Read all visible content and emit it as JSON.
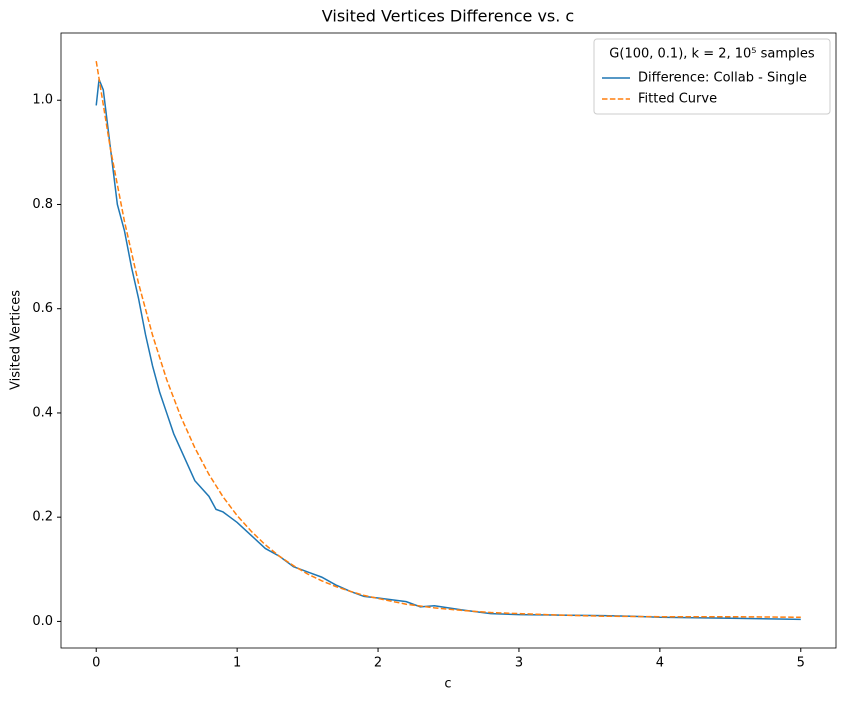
{
  "chart_data": {
    "type": "line",
    "title": "Visited Vertices Difference vs. c",
    "x_label": "c",
    "y_label": "Visited Vertices",
    "legend_title": "G(100, 0.1), k = 2, 10⁵ samples",
    "legend_position": "upper right",
    "xlim": [
      -0.25,
      5.25
    ],
    "ylim": [
      -0.051,
      1.129
    ],
    "xticks": [
      0,
      1,
      2,
      3,
      4,
      5
    ],
    "yticks": [
      {
        "value": 0,
        "label": "0.0"
      },
      0.2,
      0.4,
      0.6,
      0.8,
      {
        "value": 1,
        "label": "1.0"
      }
    ],
    "series": [
      {
        "name": "Difference: Collab - Single",
        "color": "#1f77b4",
        "style": "solid",
        "x": [
          0,
          0.02,
          0.05,
          0.1,
          0.15,
          0.2,
          0.25,
          0.3,
          0.35,
          0.4,
          0.45,
          0.5,
          0.55,
          0.6,
          0.7,
          0.8,
          0.85,
          0.9,
          0.95,
          1.0,
          1.1,
          1.2,
          1.3,
          1.4,
          1.5,
          1.6,
          1.7,
          1.8,
          1.9,
          2.0,
          2.2,
          2.3,
          2.4,
          2.6,
          2.8,
          3.0,
          3.3,
          3.6,
          3.8,
          4.0,
          4.5,
          5.0
        ],
        "values": [
          0.99,
          1.04,
          1.02,
          0.91,
          0.8,
          0.75,
          0.68,
          0.62,
          0.55,
          0.49,
          0.44,
          0.4,
          0.36,
          0.33,
          0.27,
          0.24,
          0.215,
          0.21,
          0.2,
          0.19,
          0.165,
          0.14,
          0.125,
          0.105,
          0.095,
          0.085,
          0.07,
          0.058,
          0.048,
          0.045,
          0.038,
          0.028,
          0.03,
          0.022,
          0.015,
          0.013,
          0.012,
          0.011,
          0.01,
          0.008,
          0.006,
          0.004
        ]
      },
      {
        "name": "Fitted Curve",
        "color": "#ff7f0e",
        "style": "dashed",
        "x": [
          0,
          0.1,
          0.2,
          0.3,
          0.4,
          0.5,
          0.6,
          0.7,
          0.8,
          0.9,
          1.0,
          1.1,
          1.2,
          1.3,
          1.4,
          1.5,
          1.6,
          1.7,
          1.8,
          1.9,
          2.0,
          2.2,
          2.4,
          2.6,
          2.8,
          3.0,
          3.3,
          3.6,
          4.0,
          4.5,
          5.0
        ],
        "values": [
          1.075,
          0.908,
          0.768,
          0.649,
          0.549,
          0.464,
          0.393,
          0.333,
          0.282,
          0.239,
          0.203,
          0.173,
          0.147,
          0.125,
          0.107,
          0.091,
          0.078,
          0.067,
          0.058,
          0.05,
          0.044,
          0.033,
          0.026,
          0.021,
          0.017,
          0.015,
          0.012,
          0.01,
          0.009,
          0.009,
          0.008
        ]
      }
    ]
  }
}
